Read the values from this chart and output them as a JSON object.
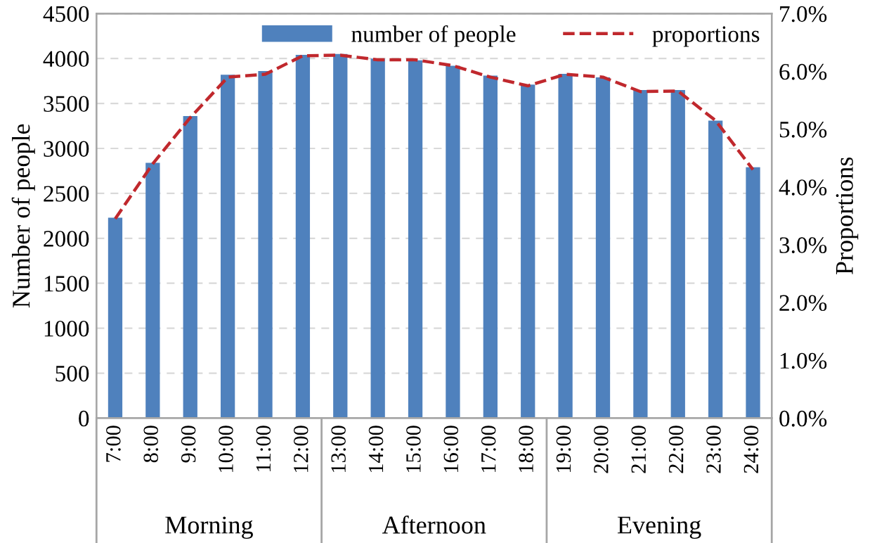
{
  "chart_data": {
    "type": "bar",
    "ylabel": "Number of people",
    "y2label": "Proportions",
    "categories": [
      "7:00",
      "8:00",
      "9:00",
      "10:00",
      "11:00",
      "12:00",
      "13:00",
      "14:00",
      "15:00",
      "16:00",
      "17:00",
      "18:00",
      "19:00",
      "20:00",
      "21:00",
      "22:00",
      "23:00",
      "24:00"
    ],
    "series": [
      {
        "name": "number of people",
        "color": "#4f81bd",
        "values": [
          2230,
          2840,
          3360,
          3820,
          3860,
          4040,
          4050,
          4000,
          3980,
          3920,
          3810,
          3710,
          3830,
          3790,
          3650,
          3650,
          3310,
          2790
        ]
      },
      {
        "name": "proportions",
        "type": "line",
        "axis": "y2",
        "color": "#c0282d",
        "line_style": "dashed",
        "values": [
          3.45,
          4.4,
          5.2,
          5.9,
          5.95,
          6.27,
          6.28,
          6.2,
          6.2,
          6.1,
          5.9,
          5.75,
          5.95,
          5.9,
          5.65,
          5.66,
          5.15,
          4.3
        ]
      }
    ],
    "ylim": [
      0,
      4500
    ],
    "yticks": [
      0,
      500,
      1000,
      1500,
      2000,
      2500,
      3000,
      3500,
      4000,
      4500
    ],
    "y2lim": [
      0,
      7
    ],
    "y2ticks": [
      {
        "value": 0,
        "label": "0.0%"
      },
      {
        "value": 1,
        "label": "1.0%"
      },
      {
        "value": 2,
        "label": "2.0%"
      },
      {
        "value": 3,
        "label": "3.0%"
      },
      {
        "value": 4,
        "label": "4.0%"
      },
      {
        "value": 5,
        "label": "5.0%"
      },
      {
        "value": 6,
        "label": "6.0%"
      },
      {
        "value": 7,
        "label": "7.0%"
      }
    ],
    "annotations": [
      "Morning",
      "Afternoon",
      "Evening"
    ],
    "grid": "y",
    "legend": "top right"
  }
}
